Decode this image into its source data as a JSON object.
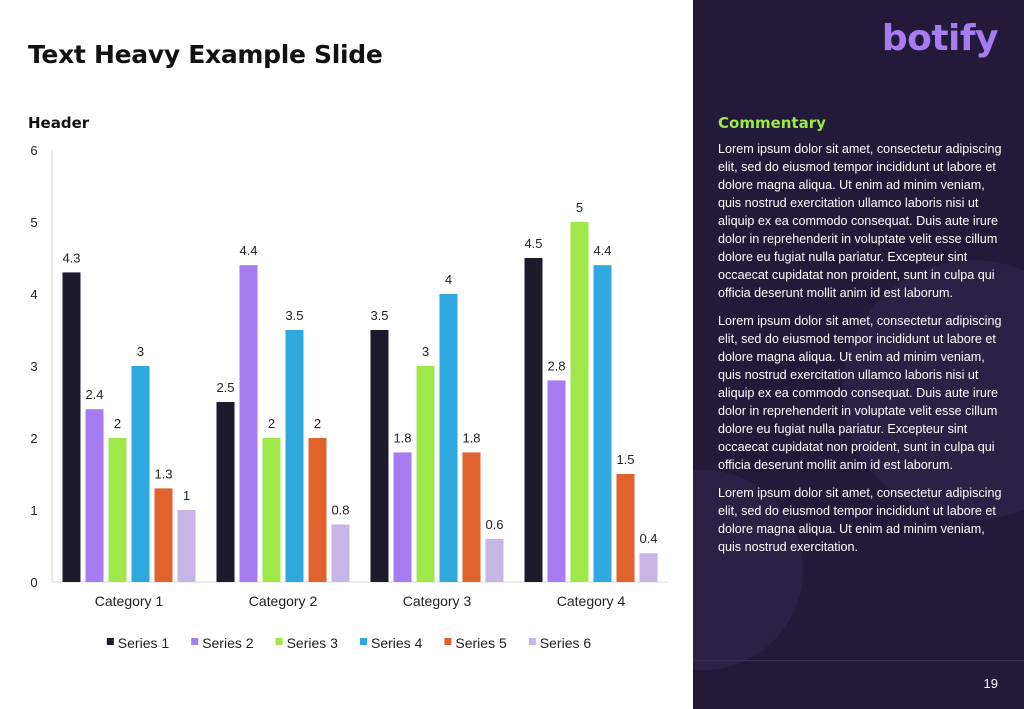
{
  "slide": {
    "title": "Text Heavy Example Slide",
    "page_number": "19"
  },
  "logo": {
    "text": "botify",
    "color": "#a77bf2"
  },
  "commentary": {
    "title": "Commentary",
    "paragraphs": [
      "Lorem ipsum dolor sit amet, consectetur adipiscing elit, sed do eiusmod tempor incididunt ut labore et dolore magna aliqua. Ut enim ad minim veniam, quis nostrud exercitation ullamco laboris nisi ut aliquip ex ea commodo consequat. Duis aute irure dolor in reprehenderit in voluptate velit esse cillum dolore eu fugiat nulla pariatur. Excepteur sint occaecat cupidatat non proident, sunt in culpa qui officia deserunt mollit anim id est laborum.",
      "Lorem ipsum dolor sit amet, consectetur adipiscing elit, sed do eiusmod tempor incididunt ut labore et dolore magna aliqua. Ut enim ad minim veniam, quis nostrud exercitation ullamco laboris nisi ut aliquip ex ea commodo consequat. Duis aute irure dolor in reprehenderit in voluptate velit esse cillum dolore eu fugiat nulla pariatur. Excepteur sint occaecat cupidatat non proident, sunt in culpa qui officia deserunt mollit anim id est laborum.",
      "Lorem ipsum dolor sit amet, consectetur adipiscing elit, sed do eiusmod tempor incididunt ut labore et dolore magna aliqua. Ut enim ad minim veniam, quis nostrud exercitation."
    ]
  },
  "chart_data": {
    "type": "bar",
    "title": "Header",
    "xlabel": "",
    "ylabel": "",
    "ylim": [
      0,
      6
    ],
    "yticks": [
      0,
      1,
      2,
      3,
      4,
      5,
      6
    ],
    "grid": false,
    "legend_position": "bottom",
    "categories": [
      "Category 1",
      "Category 2",
      "Category 3",
      "Category 4"
    ],
    "series": [
      {
        "name": "Series 1",
        "color": "#1e1a2e",
        "values": [
          4.3,
          2.5,
          3.5,
          4.5
        ]
      },
      {
        "name": "Series 2",
        "color": "#a77bf2",
        "values": [
          2.4,
          4.4,
          1.8,
          2.8
        ]
      },
      {
        "name": "Series 3",
        "color": "#9ee84a",
        "values": [
          2,
          2,
          3,
          5
        ]
      },
      {
        "name": "Series 4",
        "color": "#2fa8e0",
        "values": [
          3,
          3.5,
          4,
          4.4
        ]
      },
      {
        "name": "Series 5",
        "color": "#e0622d",
        "values": [
          1.3,
          2,
          1.8,
          1.5
        ]
      },
      {
        "name": "Series 6",
        "color": "#c7b5e6",
        "values": [
          1,
          0.8,
          0.6,
          0.4
        ]
      }
    ]
  }
}
